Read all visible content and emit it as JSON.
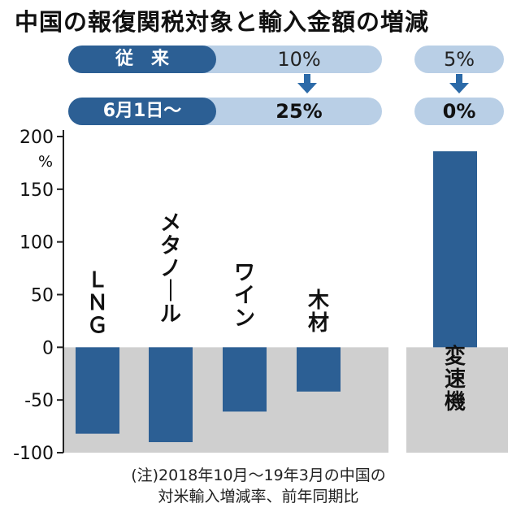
{
  "title": "中国の報復関税対象と輸入金額の増減",
  "tariff": {
    "before": {
      "label": "従　来",
      "group1": "10%",
      "group2": "5%"
    },
    "after": {
      "label": "6月1日～",
      "group1": "25%",
      "group2": "0%"
    },
    "arrow_color": "#2c6aa8"
  },
  "chart_data": {
    "type": "bar",
    "categories": [
      "ＬＮＧ",
      "メタノール",
      "ワイン",
      "木材",
      "変速機"
    ],
    "values": [
      -82,
      -90,
      -61,
      -42,
      186
    ],
    "ylabel": "%",
    "ylim": [
      -100,
      200
    ],
    "yticks": [
      "200",
      "150",
      "100",
      "50",
      "0",
      "-50",
      "-100"
    ],
    "grid": false,
    "bar_color": "#2c5f94",
    "negative_background": "#cfcfcf"
  },
  "note": {
    "line1": "(注)2018年10月～19年3月の中国の",
    "line2": "対米輸入増減率、前年同期比"
  }
}
